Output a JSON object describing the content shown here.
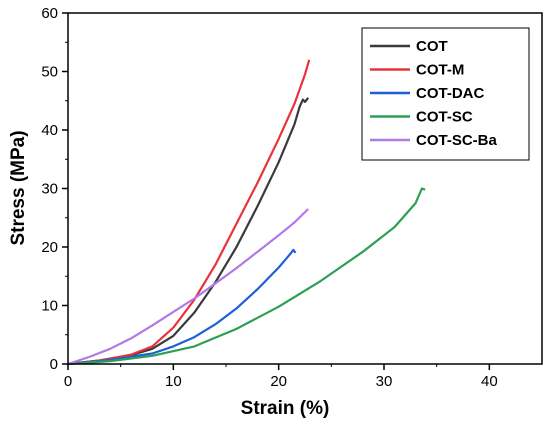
{
  "chart_data": {
    "type": "line",
    "xlabel": "Strain (%)",
    "ylabel": "Stress (MPa)",
    "xlim": [
      0,
      45
    ],
    "ylim": [
      0,
      60
    ],
    "xticks": [
      0,
      10,
      20,
      30,
      40
    ],
    "yticks": [
      0,
      10,
      20,
      30,
      40,
      50,
      60
    ],
    "grid": false,
    "legend_position": "top-right",
    "series": [
      {
        "name": "COT",
        "color": "#3a3a3a",
        "points": [
          [
            0,
            0
          ],
          [
            3,
            0.6
          ],
          [
            6,
            1.5
          ],
          [
            8,
            2.6
          ],
          [
            10,
            4.8
          ],
          [
            12,
            8.8
          ],
          [
            14,
            14
          ],
          [
            16,
            20
          ],
          [
            18,
            27
          ],
          [
            20,
            34.5
          ],
          [
            21.5,
            41
          ],
          [
            22,
            44
          ],
          [
            22.3,
            45.2
          ],
          [
            22.5,
            44.8
          ],
          [
            22.8,
            45.5
          ]
        ]
      },
      {
        "name": "COT-M",
        "color": "#e8333a",
        "points": [
          [
            0,
            0
          ],
          [
            3,
            0.6
          ],
          [
            6,
            1.6
          ],
          [
            8,
            3
          ],
          [
            10,
            6.2
          ],
          [
            12,
            11
          ],
          [
            14,
            17
          ],
          [
            16,
            24
          ],
          [
            18,
            31
          ],
          [
            20,
            38.5
          ],
          [
            21.5,
            44.5
          ],
          [
            22.5,
            49.5
          ],
          [
            22.9,
            52
          ]
        ]
      },
      {
        "name": "COT-DAC",
        "color": "#1f5fd6",
        "points": [
          [
            0,
            0
          ],
          [
            4,
            0.7
          ],
          [
            8,
            1.8
          ],
          [
            10,
            3
          ],
          [
            12,
            4.6
          ],
          [
            14,
            6.8
          ],
          [
            16,
            9.5
          ],
          [
            18,
            12.8
          ],
          [
            20,
            16.5
          ],
          [
            21,
            18.6
          ],
          [
            21.4,
            19.5
          ],
          [
            21.6,
            19
          ]
        ]
      },
      {
        "name": "COT-SC",
        "color": "#2e9e57",
        "points": [
          [
            0,
            0
          ],
          [
            4,
            0.5
          ],
          [
            8,
            1.4
          ],
          [
            12,
            3
          ],
          [
            16,
            6
          ],
          [
            20,
            9.8
          ],
          [
            24,
            14.2
          ],
          [
            28,
            19.2
          ],
          [
            31,
            23.4
          ],
          [
            33,
            27.5
          ],
          [
            33.6,
            30
          ],
          [
            33.9,
            29.8
          ]
        ]
      },
      {
        "name": "COT-SC-Ba",
        "color": "#b07ae6",
        "points": [
          [
            0,
            0
          ],
          [
            2,
            1.2
          ],
          [
            4,
            2.6
          ],
          [
            6,
            4.4
          ],
          [
            8,
            6.6
          ],
          [
            10,
            8.9
          ],
          [
            12,
            11.2
          ],
          [
            14,
            13.8
          ],
          [
            16,
            16.4
          ],
          [
            18,
            19.2
          ],
          [
            20,
            22
          ],
          [
            21.5,
            24.2
          ],
          [
            22.8,
            26.5
          ]
        ]
      }
    ]
  }
}
